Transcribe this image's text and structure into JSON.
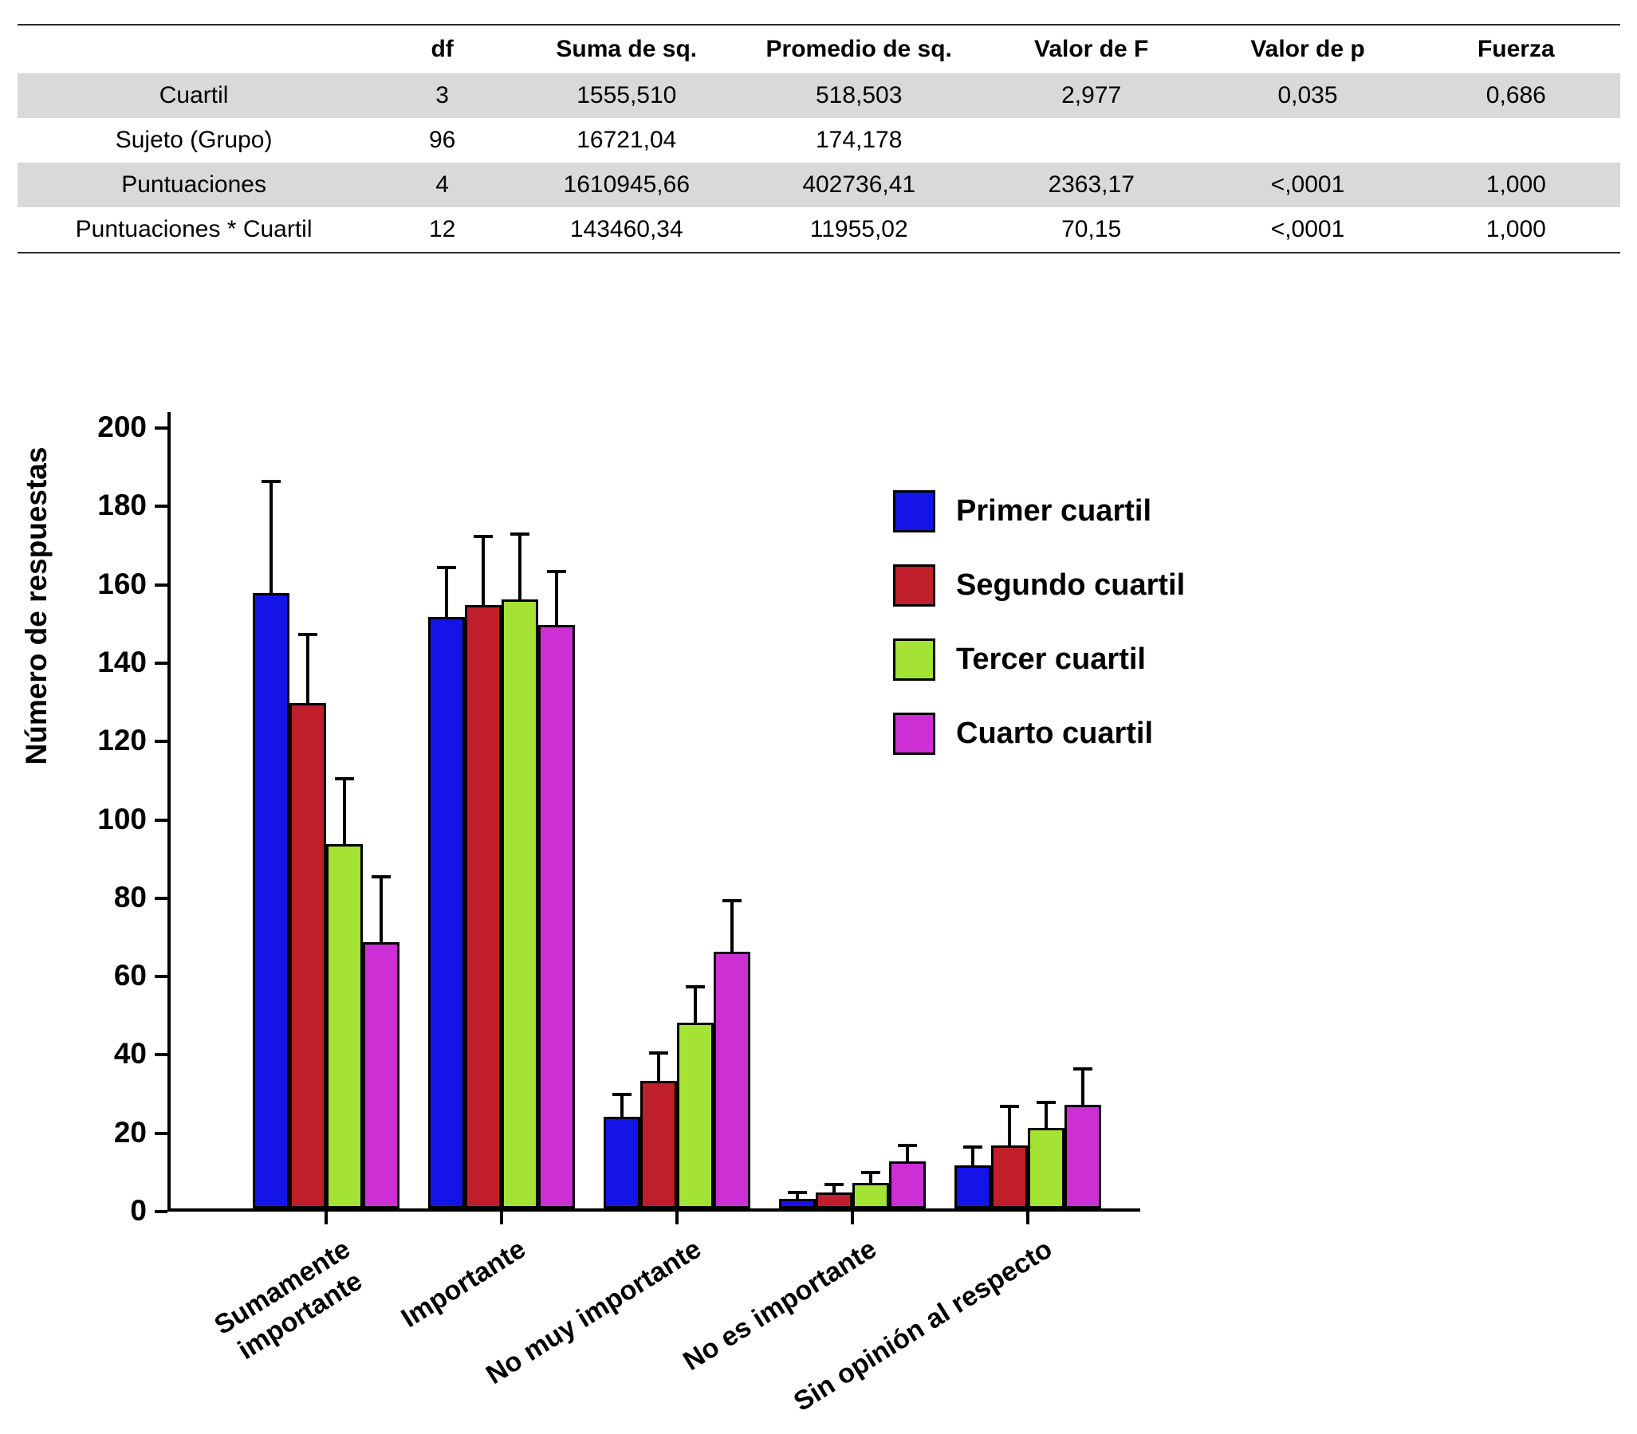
{
  "table": {
    "headers": [
      "",
      "df",
      "Suma de sq.",
      "Promedio de sq.",
      "Valor de F",
      "Valor de p",
      "Fuerza"
    ],
    "rows": [
      {
        "label": "Cuartil",
        "values": [
          "3",
          "1555,510",
          "518,503",
          "2,977",
          "0,035",
          "0,686"
        ],
        "shaded": true
      },
      {
        "label": "Sujeto (Grupo)",
        "values": [
          "96",
          "16721,04",
          "174,178",
          "",
          "",
          ""
        ],
        "shaded": false
      },
      {
        "label": "Puntuaciones",
        "values": [
          "4",
          "1610945,66",
          "402736,41",
          "2363,17",
          "<,0001",
          "1,000"
        ],
        "shaded": true
      },
      {
        "label": "Puntuaciones * Cuartil",
        "values": [
          "12",
          "143460,34",
          "11955,02",
          "70,15",
          "<,0001",
          "1,000"
        ],
        "shaded": false
      }
    ],
    "shade_color": "#d9d9d9"
  },
  "chart_data": {
    "type": "bar",
    "title": "",
    "xlabel": "",
    "ylabel": "Número de respuestas",
    "ylim": [
      0,
      200
    ],
    "ytick_step": 20,
    "grid": false,
    "legend_position": "upper-right-inside",
    "error_bars": "upper",
    "categories": [
      "Sumamente\nimportante",
      "Importante",
      "No muy importante",
      "No es importante",
      "Sin opinión al respecto"
    ],
    "series": [
      {
        "name": "Primer cuartil",
        "color": "#1414e8",
        "values": [
          157,
          151,
          23.5,
          2.5,
          11
        ],
        "errors": [
          29,
          13,
          6,
          2,
          5
        ]
      },
      {
        "name": "Segundo cuartil",
        "color": "#bf1e2a",
        "values": [
          129,
          154,
          32.5,
          4,
          16
        ],
        "errors": [
          18,
          18,
          7.5,
          2.5,
          10.5
        ]
      },
      {
        "name": "Tercer cuartil",
        "color": "#a4e334",
        "values": [
          93,
          155.5,
          47.5,
          6.5,
          20.5
        ],
        "errors": [
          17,
          17,
          9.5,
          3,
          7
        ]
      },
      {
        "name": "Cuarto cuartil",
        "color": "#cc2fd4",
        "values": [
          68,
          149,
          65.5,
          12,
          26.5
        ],
        "errors": [
          17,
          14,
          13.5,
          4.5,
          9.5
        ]
      }
    ]
  }
}
